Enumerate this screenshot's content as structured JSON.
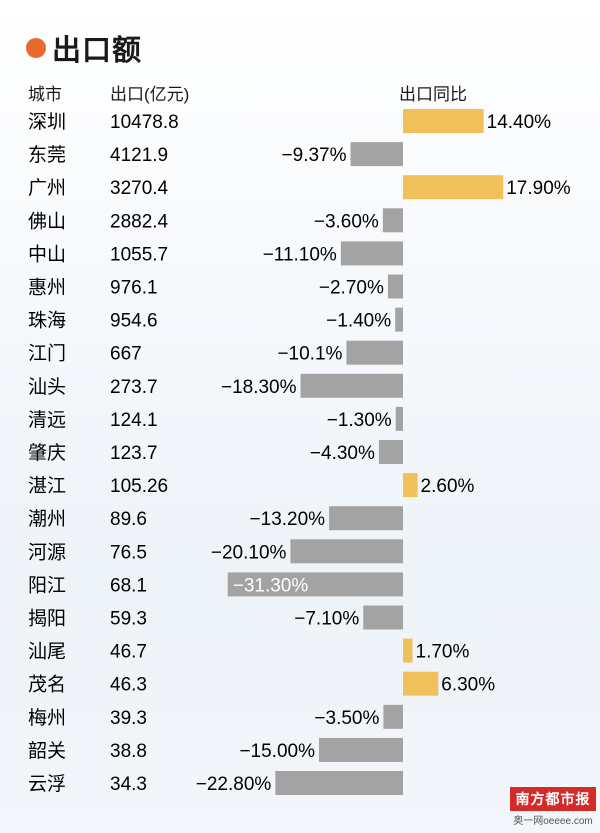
{
  "title": "出口额",
  "headers": {
    "city": "城市",
    "export": "出口(亿元)",
    "yoy": "出口同比"
  },
  "colors": {
    "positive": "#f0c05a",
    "negative": "#a3a3a3",
    "accent_dot": "#e8692c"
  },
  "chart_data": {
    "type": "bar",
    "categories": [
      "深圳",
      "东莞",
      "广州",
      "佛山",
      "中山",
      "惠州",
      "珠海",
      "江门",
      "汕头",
      "清远",
      "肇庆",
      "湛江",
      "潮州",
      "河源",
      "阳江",
      "揭阳",
      "汕尾",
      "茂名",
      "梅州",
      "韶关",
      "云浮"
    ],
    "export_values": [
      "10478.8",
      "4121.9",
      "3270.4",
      "2882.4",
      "1055.7",
      "976.1",
      "954.6",
      "667",
      "273.7",
      "124.1",
      "123.7",
      "105.26",
      "89.6",
      "76.5",
      "68.1",
      "59.3",
      "46.7",
      "46.3",
      "39.3",
      "38.8",
      "34.3"
    ],
    "values": [
      14.4,
      -9.37,
      17.9,
      -3.6,
      -11.1,
      -2.7,
      -1.4,
      -10.1,
      -18.3,
      -1.3,
      -4.3,
      2.6,
      -13.2,
      -20.1,
      -31.3,
      -7.1,
      1.7,
      6.3,
      -3.5,
      -15.0,
      -22.8
    ],
    "value_labels": [
      "14.40%",
      "−9.37%",
      "17.90%",
      "−3.60%",
      "−11.10%",
      "−2.70%",
      "−1.40%",
      "−10.1%",
      "−18.30%",
      "−1.30%",
      "−4.30%",
      "2.60%",
      "−13.20%",
      "−20.10%",
      "−31.30%",
      "−7.10%",
      "1.70%",
      "6.30%",
      "−3.50%",
      "−15.00%",
      "−22.80%"
    ],
    "ylabel": "出口同比"
  },
  "watermark": {
    "logo": "南方都市报",
    "site": "奥一网oeeee.com"
  }
}
